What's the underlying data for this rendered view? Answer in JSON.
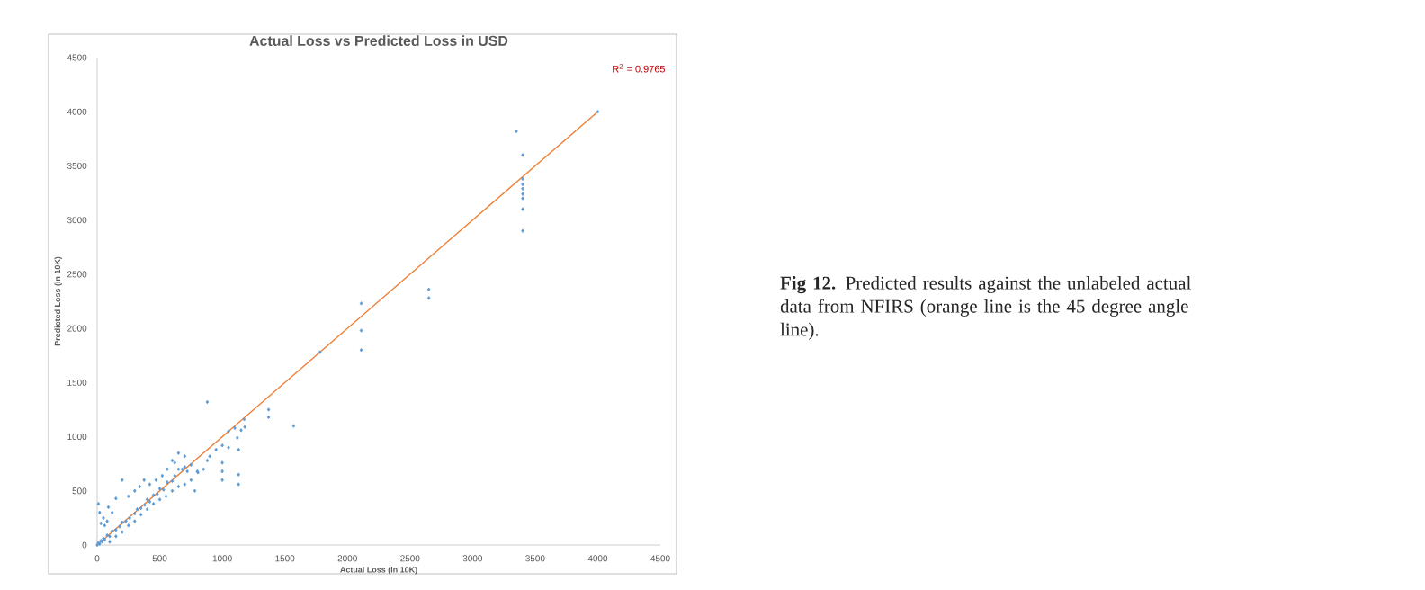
{
  "chart_data": {
    "type": "scatter",
    "title": "Actual Loss vs Predicted Loss in USD",
    "xlabel": "Actual Loss (in 10K)",
    "ylabel": "Predicted Loss (in 10K)",
    "xlim": [
      0,
      4500
    ],
    "ylim": [
      0,
      4500
    ],
    "xticks": [
      0,
      500,
      1000,
      1500,
      2000,
      2500,
      3000,
      3500,
      4000,
      4500
    ],
    "yticks": [
      0,
      500,
      1000,
      1500,
      2000,
      2500,
      3000,
      3500,
      4000,
      4500
    ],
    "grid": false,
    "series": [
      {
        "type": "scatter",
        "color": "#5b9bd5",
        "marker": "diamond",
        "x": [
          0,
          10,
          20,
          30,
          40,
          50,
          60,
          80,
          100,
          120,
          150,
          180,
          200,
          230,
          260,
          300,
          320,
          350,
          380,
          400,
          420,
          450,
          480,
          500,
          530,
          560,
          600,
          620,
          650,
          680,
          700,
          720,
          750,
          10,
          90,
          150,
          20,
          50,
          30,
          80,
          120,
          60,
          200,
          375,
          340,
          250,
          300,
          420,
          470,
          520,
          560,
          600,
          650,
          700,
          620,
          100,
          150,
          200,
          250,
          300,
          350,
          400,
          450,
          500,
          550,
          600,
          650,
          700,
          750,
          800,
          805,
          780,
          850,
          880,
          900,
          950,
          1000,
          1000,
          1000,
          1000,
          1050,
          1050,
          1100,
          1120,
          1130,
          1150,
          1180,
          1175,
          1130,
          1130,
          880,
          1370,
          1370,
          1570,
          1780,
          2110,
          2110,
          2110,
          2650,
          2650,
          3350,
          3400,
          3400,
          3400,
          3400,
          3400,
          3400,
          3400,
          3400,
          4000
        ],
        "values": [
          0,
          20,
          10,
          40,
          30,
          60,
          50,
          90,
          80,
          130,
          140,
          170,
          210,
          220,
          250,
          290,
          330,
          340,
          370,
          420,
          400,
          460,
          470,
          520,
          510,
          580,
          590,
          640,
          700,
          700,
          720,
          680,
          740,
          380,
          350,
          430,
          300,
          250,
          200,
          220,
          300,
          180,
          600,
          600,
          540,
          450,
          500,
          560,
          600,
          640,
          700,
          780,
          850,
          820,
          760,
          30,
          80,
          120,
          180,
          220,
          280,
          330,
          380,
          420,
          450,
          500,
          540,
          560,
          600,
          680,
          670,
          500,
          700,
          780,
          820,
          880,
          760,
          680,
          600,
          920,
          900,
          1050,
          1080,
          990,
          880,
          1060,
          1090,
          1160,
          650,
          560,
          1320,
          1250,
          1180,
          1100,
          1780,
          2230,
          1980,
          1800,
          2360,
          2280,
          3820,
          3600,
          3380,
          3330,
          3290,
          3240,
          3200,
          3100,
          2900,
          4000
        ]
      },
      {
        "type": "line",
        "color": "#ed7d31",
        "marker": "none",
        "x": [
          0,
          4000
        ],
        "values": [
          0,
          4000
        ]
      }
    ],
    "annotations": [
      "R$^{2}$ = 0.9765",
      "**Fig 12.** Predicted results against the unlabeled actual data from NFIRS (orange line is the 45 degree angle line)."
    ]
  }
}
